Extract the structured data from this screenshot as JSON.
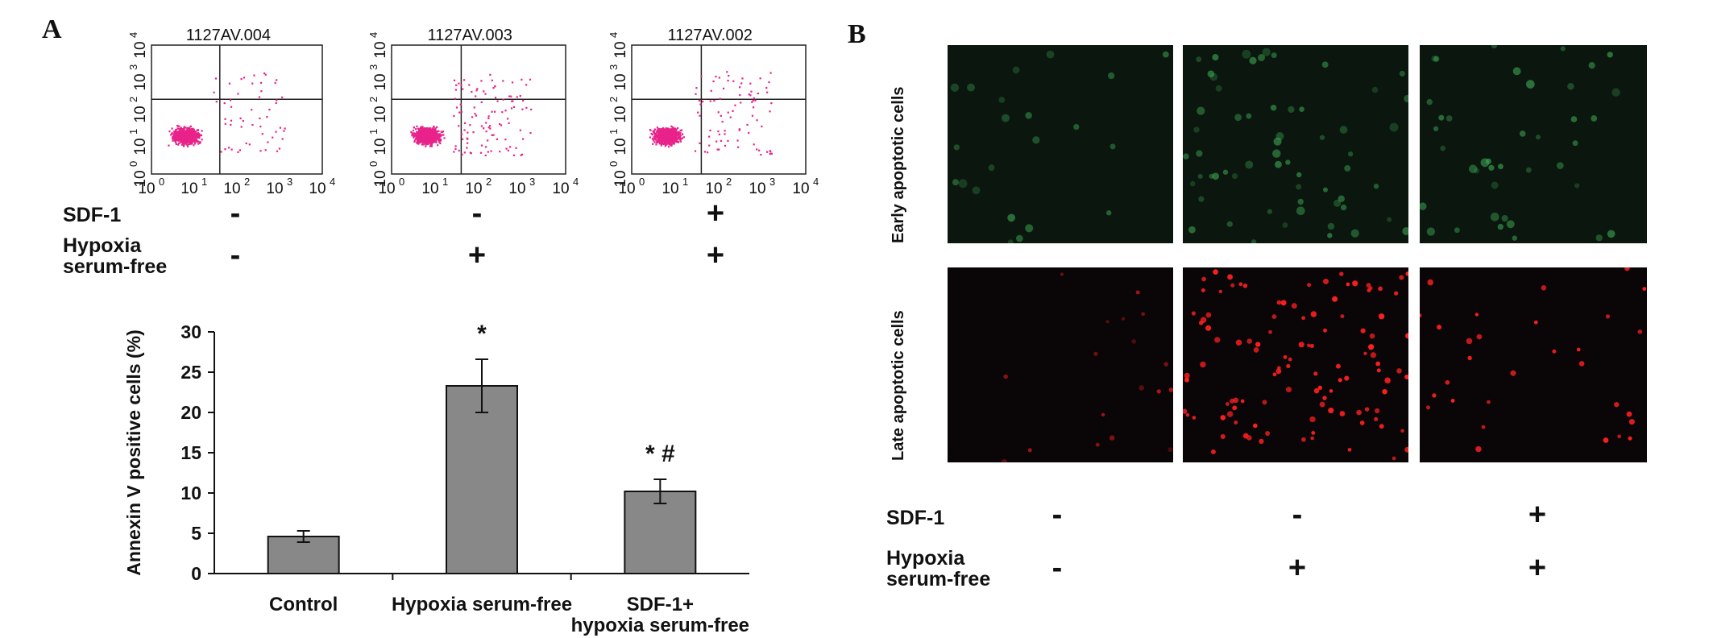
{
  "panel_a": {
    "letter": "A",
    "flow_plots": [
      {
        "title": "1127AV.004"
      },
      {
        "title": "1127AV.003"
      },
      {
        "title": "1127AV.002"
      }
    ],
    "flow_axis_ticks": [
      "10",
      "10",
      "10",
      "10",
      "10"
    ],
    "flow_axis_exponents": [
      "0",
      "1",
      "2",
      "3",
      "4"
    ],
    "conditions": {
      "sdf_label": "SDF-1",
      "hypoxia_label_line1": "Hypoxia",
      "hypoxia_label_line2": "serum-free",
      "sdf": [
        "-",
        "-",
        "+"
      ],
      "hypoxia": [
        "-",
        "+",
        "+"
      ]
    }
  },
  "chart_data": {
    "type": "bar",
    "title": "",
    "ylabel": "Annexin V positive cells (%)",
    "xlabel": "",
    "ylim": [
      0,
      30
    ],
    "yticks": [
      0,
      5,
      10,
      15,
      20,
      25,
      30
    ],
    "categories": [
      "Control",
      "Hypoxia serum-free",
      "SDF-1+ hypoxia serum-free"
    ],
    "category_lines": [
      [
        "Control"
      ],
      [
        "Hypoxia serum-free"
      ],
      [
        "SDF-1+",
        "hypoxia serum-free"
      ]
    ],
    "values": [
      4.6,
      23.3,
      10.2
    ],
    "errors": [
      0.7,
      3.3,
      1.5
    ],
    "annotations": [
      "",
      "*",
      "* #"
    ],
    "bar_color": "#888888",
    "grid": false
  },
  "panel_b": {
    "letter": "B",
    "row_labels": [
      "Early apoptotic cells",
      "Late apoptotic cells"
    ],
    "conditions": {
      "sdf_label": "SDF-1",
      "hypoxia_label_line1": "Hypoxia",
      "hypoxia_label_line2": "serum-free",
      "sdf": [
        "-",
        "-",
        "+"
      ],
      "hypoxia": [
        "-",
        "+",
        "+"
      ]
    },
    "colors": {
      "early_stain": "#3fae56",
      "late_stain": "#ff2020"
    }
  }
}
